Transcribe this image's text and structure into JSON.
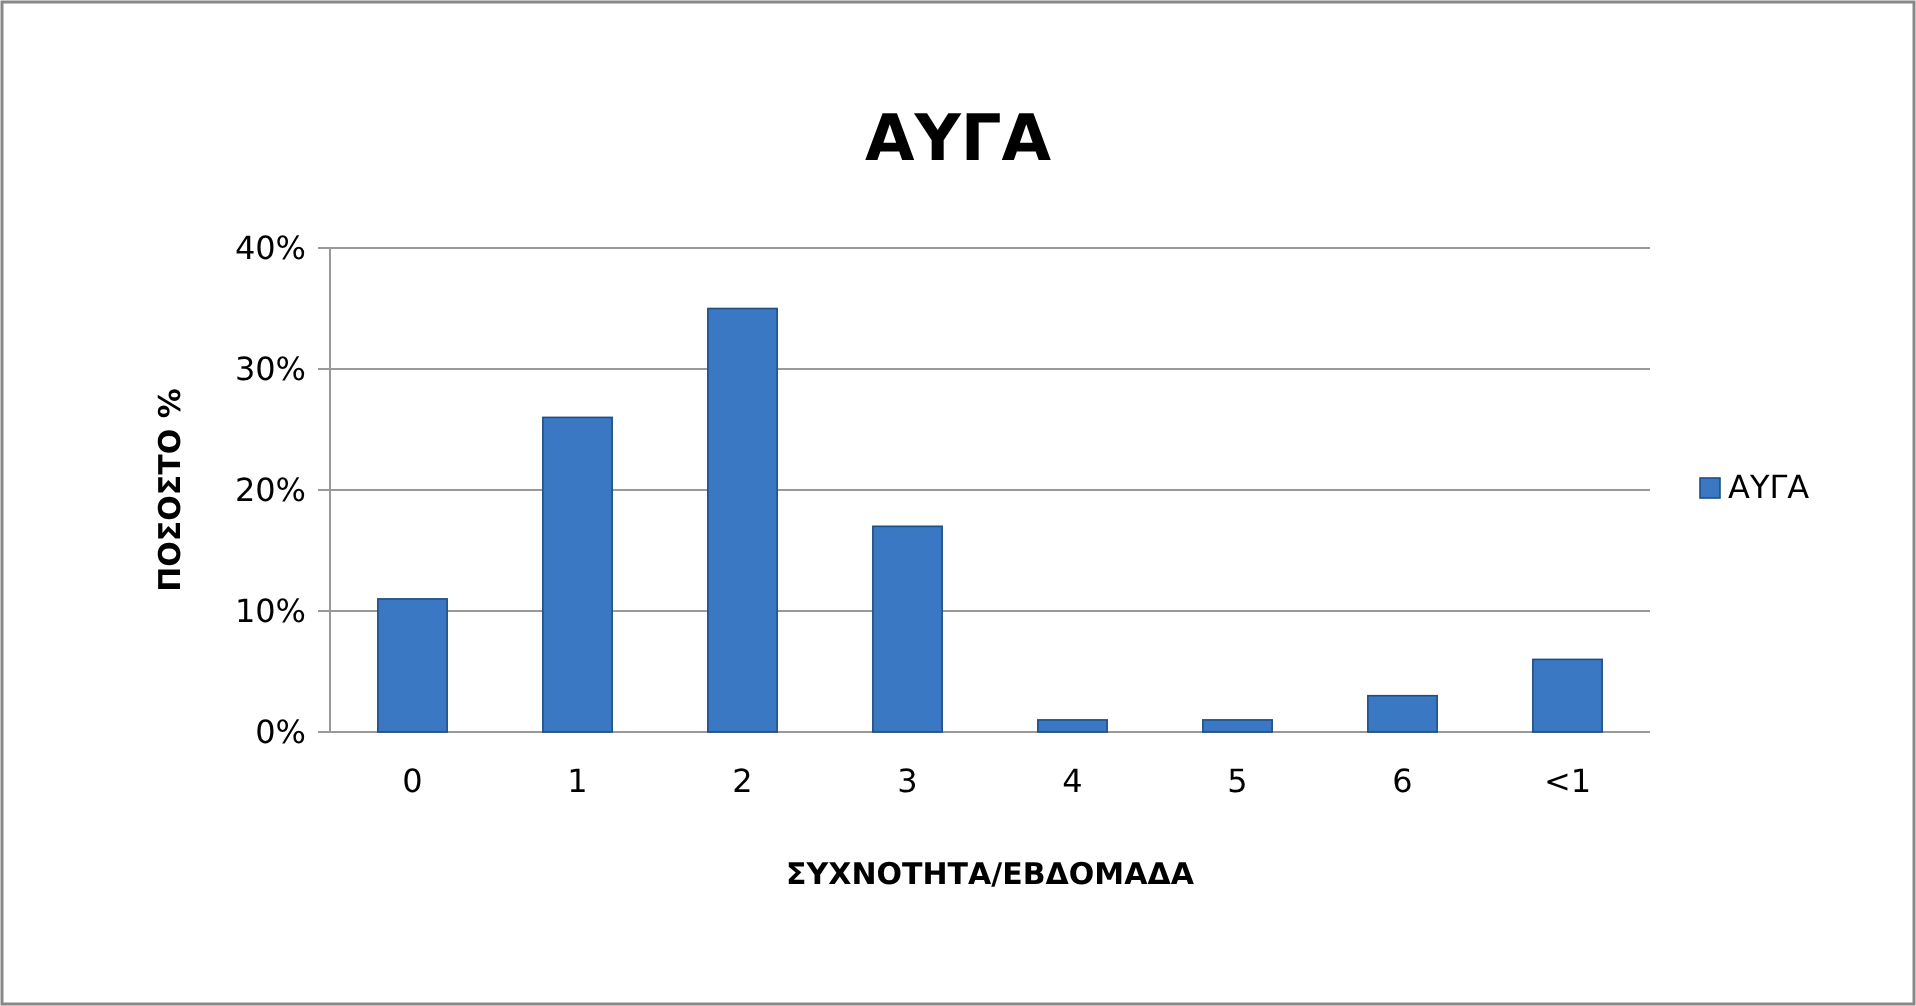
{
  "chart_data": {
    "type": "bar",
    "title": "ΑΥΓΑ",
    "xlabel": "ΣΥΧΝΟΤΗΤΑ/ΕΒΔΟΜΑΔΑ",
    "ylabel": "ΠΟΣΟΣΤΟ %",
    "categories": [
      "0",
      "1",
      "2",
      "3",
      "4",
      "5",
      "6",
      "<1"
    ],
    "series": [
      {
        "name": "ΑΥΓΑ",
        "color": "#3a78c4",
        "values": [
          11,
          26,
          35,
          17,
          1,
          1,
          3,
          6
        ]
      }
    ],
    "ylim": [
      0,
      40
    ],
    "yticks": [
      {
        "value": 0,
        "label": "0%"
      },
      {
        "value": 10,
        "label": "10%"
      },
      {
        "value": 20,
        "label": "20%"
      },
      {
        "value": 30,
        "label": "30%"
      },
      {
        "value": 40,
        "label": "40%"
      }
    ],
    "grid": "y",
    "legend": "right"
  }
}
